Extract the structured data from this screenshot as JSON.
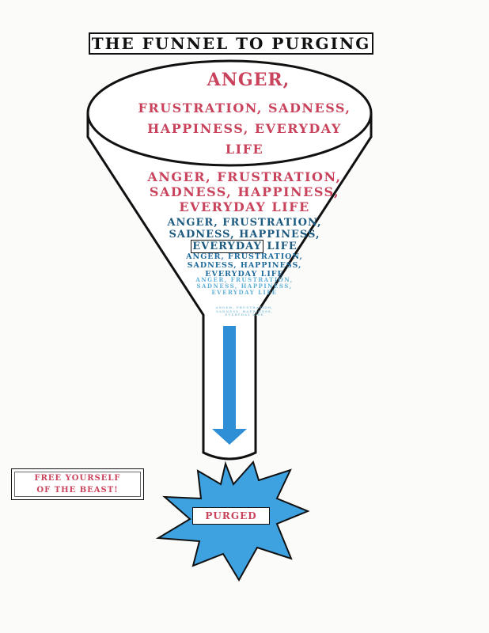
{
  "title": "The Funnel to Purging",
  "tiers": [
    {
      "lines": [
        "Anger,",
        "Frustration, Sadness,",
        "Happiness, Everyday",
        "Life"
      ]
    },
    {
      "lines": [
        "Anger, Frustration,",
        "Sadness, Happiness,",
        "Everyday Life"
      ]
    },
    {
      "lines": [
        "Anger, Frustration,",
        "Sadness, Happiness,"
      ],
      "underlined": "Everyday",
      "tail": " Life"
    },
    {
      "lines": [
        "Anger, Frustration,",
        "Sadness, Happiness,",
        "Everyday Life"
      ]
    },
    {
      "lines": [
        "Anger, Frustration,",
        "Sadness, Happiness,",
        "Everyday Life"
      ]
    },
    {
      "lines": [
        "Anger, Frustration,",
        "Sadness, Happiness,",
        "Everyday Life"
      ]
    }
  ],
  "callout": {
    "line1": "Free Yourself",
    "line2": "of the Beast!"
  },
  "result": "Purged",
  "colors": {
    "red_text": "#c9435c",
    "dark_blue_text": "#1d5a80",
    "arrow_blue": "#2e8fd6",
    "burst_blue": "#3ea2e0",
    "outline": "#111111"
  }
}
